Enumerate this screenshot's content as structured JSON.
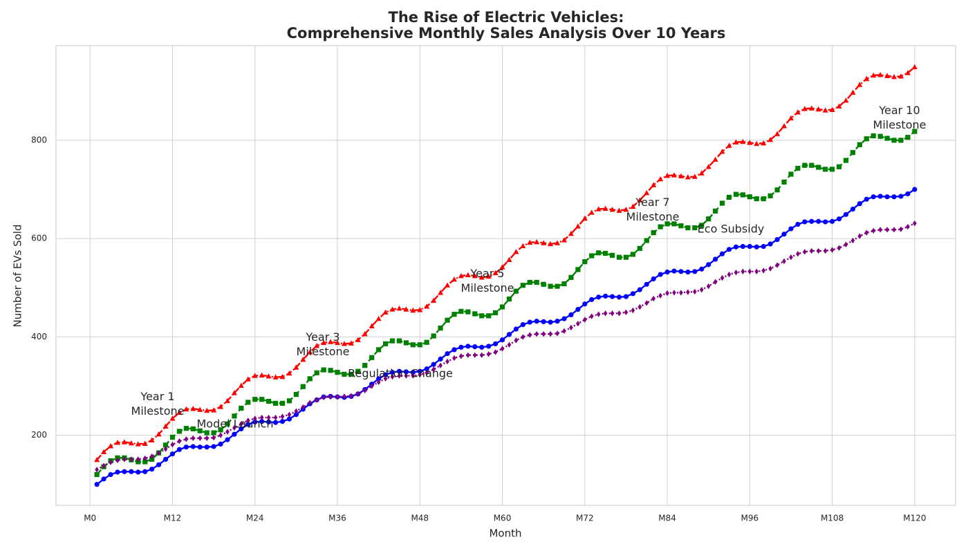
{
  "chart_data": {
    "type": "line",
    "title": "The Rise of Electric Vehicles:\nComprehensive Monthly Sales Analysis Over 10 Years",
    "x_label": "Month",
    "y_label": "Number of EVs Sold",
    "x": [
      1,
      2,
      3,
      4,
      5,
      6,
      7,
      8,
      9,
      10,
      11,
      12,
      13,
      14,
      15,
      16,
      17,
      18,
      19,
      20,
      21,
      22,
      23,
      24,
      25,
      26,
      27,
      28,
      29,
      30,
      31,
      32,
      33,
      34,
      35,
      36,
      37,
      38,
      39,
      40,
      41,
      42,
      43,
      44,
      45,
      46,
      47,
      48,
      49,
      50,
      51,
      52,
      53,
      54,
      55,
      56,
      57,
      58,
      59,
      60,
      61,
      62,
      63,
      64,
      65,
      66,
      67,
      68,
      69,
      70,
      71,
      72,
      73,
      74,
      75,
      76,
      77,
      78,
      79,
      80,
      81,
      82,
      83,
      84,
      85,
      86,
      87,
      88,
      89,
      90,
      91,
      92,
      93,
      94,
      95,
      96,
      97,
      98,
      99,
      100,
      101,
      102,
      103,
      104,
      105,
      106,
      107,
      108,
      109,
      110,
      111,
      112,
      113,
      114,
      115,
      116,
      117,
      118,
      119,
      120
    ],
    "series": [
      {
        "color": "blue",
        "marker": "circle",
        "linestyle": "solid",
        "values": [
          100,
          111,
          120,
          125,
          126,
          126,
          125,
          126,
          131,
          140,
          151,
          162,
          171,
          176,
          177,
          176,
          176,
          177,
          182,
          191,
          202,
          213,
          222,
          227,
          228,
          227,
          226,
          228,
          233,
          242,
          253,
          264,
          272,
          278,
          279,
          278,
          277,
          279,
          284,
          293,
          304,
          315,
          323,
          328,
          330,
          329,
          328,
          330,
          335,
          344,
          355,
          366,
          374,
          379,
          381,
          380,
          379,
          381,
          386,
          394,
          405,
          416,
          425,
          430,
          432,
          431,
          430,
          432,
          437,
          445,
          456,
          467,
          476,
          481,
          483,
          482,
          481,
          482,
          488,
          496,
          507,
          518,
          527,
          532,
          534,
          533,
          532,
          533,
          538,
          547,
          558,
          569,
          578,
          583,
          584,
          584,
          583,
          584,
          589,
          598,
          609,
          620,
          629,
          634,
          635,
          635,
          634,
          635,
          640,
          649,
          660,
          671,
          680,
          685,
          686,
          685,
          685,
          686,
          691,
          700
        ]
      },
      {
        "color": "green",
        "marker": "square",
        "linestyle": "dashed",
        "values": [
          120,
          136,
          148,
          154,
          154,
          150,
          146,
          146,
          151,
          164,
          180,
          196,
          208,
          214,
          213,
          209,
          205,
          205,
          211,
          223,
          239,
          255,
          267,
          273,
          273,
          269,
          265,
          265,
          270,
          283,
          299,
          315,
          327,
          333,
          332,
          328,
          324,
          324,
          330,
          342,
          358,
          374,
          386,
          392,
          392,
          388,
          384,
          384,
          389,
          402,
          418,
          434,
          446,
          452,
          451,
          447,
          443,
          443,
          449,
          461,
          477,
          493,
          505,
          511,
          511,
          507,
          503,
          503,
          508,
          521,
          537,
          553,
          565,
          571,
          570,
          566,
          562,
          562,
          568,
          580,
          596,
          612,
          624,
          630,
          630,
          626,
          622,
          622,
          627,
          640,
          656,
          672,
          684,
          690,
          689,
          685,
          681,
          681,
          687,
          699,
          715,
          731,
          743,
          749,
          749,
          745,
          741,
          741,
          746,
          759,
          775,
          791,
          803,
          809,
          808,
          804,
          800,
          800,
          806,
          818
        ]
      },
      {
        "color": "red",
        "marker": "triangle",
        "linestyle": "dashdot",
        "values": [
          150,
          166,
          178,
          185,
          186,
          184,
          182,
          183,
          190,
          202,
          218,
          234,
          246,
          253,
          254,
          252,
          250,
          251,
          258,
          270,
          286,
          301,
          314,
          321,
          322,
          320,
          318,
          319,
          326,
          338,
          354,
          369,
          382,
          388,
          390,
          388,
          386,
          387,
          394,
          406,
          422,
          437,
          450,
          456,
          458,
          456,
          454,
          455,
          462,
          474,
          490,
          505,
          517,
          524,
          526,
          524,
          521,
          523,
          530,
          542,
          557,
          573,
          585,
          592,
          593,
          591,
          589,
          591,
          597,
          610,
          625,
          641,
          653,
          660,
          661,
          659,
          657,
          659,
          665,
          678,
          693,
          709,
          721,
          728,
          729,
          727,
          725,
          726,
          733,
          746,
          761,
          777,
          789,
          796,
          797,
          795,
          793,
          794,
          801,
          813,
          829,
          845,
          857,
          864,
          865,
          863,
          861,
          862,
          869,
          881,
          897,
          913,
          925,
          932,
          933,
          931,
          929,
          930,
          937,
          949
        ]
      },
      {
        "color": "purple",
        "marker": "diamond",
        "linestyle": "dotted",
        "values": [
          130,
          138,
          145,
          149,
          151,
          151,
          151,
          153,
          157,
          164,
          172,
          181,
          188,
          192,
          194,
          194,
          194,
          195,
          200,
          207,
          215,
          223,
          230,
          234,
          236,
          236,
          236,
          238,
          242,
          249,
          257,
          266,
          272,
          277,
          278,
          278,
          279,
          280,
          284,
          291,
          300,
          308,
          315,
          319,
          321,
          321,
          321,
          323,
          327,
          334,
          342,
          350,
          357,
          361,
          363,
          363,
          363,
          365,
          369,
          376,
          384,
          393,
          400,
          404,
          406,
          406,
          406,
          407,
          412,
          419,
          427,
          435,
          442,
          446,
          448,
          448,
          448,
          450,
          454,
          461,
          469,
          478,
          484,
          489,
          490,
          490,
          491,
          492,
          496,
          503,
          512,
          520,
          527,
          531,
          533,
          533,
          533,
          535,
          539,
          546,
          554,
          562,
          569,
          573,
          575,
          575,
          575,
          577,
          581,
          588,
          596,
          605,
          612,
          616,
          618,
          618,
          618,
          619,
          624,
          631
        ]
      }
    ],
    "xlim": [
      -4.95,
      125.95
    ],
    "ylim": [
      57.5,
      992.5
    ],
    "xticks": [
      {
        "value": 0,
        "label": "M0"
      },
      {
        "value": 12,
        "label": "M12"
      },
      {
        "value": 24,
        "label": "M24"
      },
      {
        "value": 36,
        "label": "M36"
      },
      {
        "value": 48,
        "label": "M48"
      },
      {
        "value": 60,
        "label": "M60"
      },
      {
        "value": 72,
        "label": "M72"
      },
      {
        "value": 84,
        "label": "M84"
      },
      {
        "value": 96,
        "label": "M96"
      },
      {
        "value": 108,
        "label": "M108"
      },
      {
        "value": 120,
        "label": "M120"
      }
    ],
    "yticks": [
      200,
      400,
      600,
      800
    ],
    "grid": true,
    "annotations": [
      "Year 1\nMilestone",
      "Model Launch",
      "Year 3\nMilestone",
      "Regulation Change",
      "Year 5\nMilestone",
      "Year 7\nMilestone",
      "Eco Subsidy",
      "Year 10\nMilestone"
    ]
  }
}
